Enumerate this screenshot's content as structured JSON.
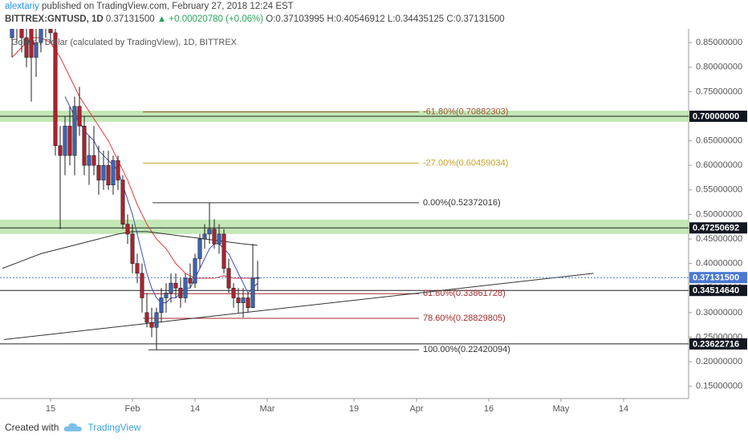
{
  "header": {
    "author": "alextariy",
    "published": "published on TradingView.com, February 27, 2018 12:24 EST",
    "symbol": "BITTREX:GNTUSD, 1D",
    "last": "0.37131500",
    "change": "▲ +0.00020780 (+0.06%)",
    "open": "O:0.37103995",
    "high": "H:0.40546912",
    "low": "L:0.34435125",
    "close": "C:0.37131500"
  },
  "chart_data": {
    "type": "candlestick",
    "title": "Golem / Dollar (calculated by TradingView), 1D, BITTREX",
    "xlim": [
      -10.5,
      132.5
    ],
    "xticks": [
      {
        "value": 0,
        "label": "15"
      },
      {
        "value": 17,
        "label": "Feb"
      },
      {
        "value": 30,
        "label": "14"
      },
      {
        "value": 45,
        "label": "Mar"
      },
      {
        "value": 63,
        "label": "19"
      },
      {
        "value": 76,
        "label": "Apr"
      },
      {
        "value": 91,
        "label": "16"
      },
      {
        "value": 106,
        "label": "May"
      },
      {
        "value": 119,
        "label": "14"
      }
    ],
    "ylim": [
      0.125,
      0.878
    ],
    "yticks": [
      {
        "value": 0.85,
        "label": "0.85000000"
      },
      {
        "value": 0.8,
        "label": "0.80000000"
      },
      {
        "value": 0.75,
        "label": "0.75000000"
      },
      {
        "value": 0.7,
        "label": "0.70000000"
      },
      {
        "value": 0.65,
        "label": "0.65000000"
      },
      {
        "value": 0.6,
        "label": "0.60000000"
      },
      {
        "value": 0.55,
        "label": "0.55000000"
      },
      {
        "value": 0.5,
        "label": "0.50000000"
      },
      {
        "value": 0.45,
        "label": "0.45000000"
      },
      {
        "value": 0.4,
        "label": "0.40000000"
      },
      {
        "value": 0.35,
        "label": "0.35000000"
      },
      {
        "value": 0.3,
        "label": "0.30000000"
      },
      {
        "value": 0.25,
        "label": "0.25000000"
      },
      {
        "value": 0.2,
        "label": "0.20000000"
      },
      {
        "value": 0.15,
        "label": "0.15000000"
      }
    ],
    "candles": {
      "up_color": "#3d64b8",
      "down_color": "#b0212f",
      "x": [
        -8,
        -7,
        -6,
        -5,
        -4,
        -3,
        -2,
        -1,
        0,
        1,
        2,
        3,
        4,
        5,
        6,
        7,
        8,
        9,
        10,
        11,
        12,
        13,
        14,
        15,
        16,
        17,
        18,
        19,
        20,
        21,
        22,
        23,
        24,
        25,
        26,
        27,
        28,
        29,
        30,
        31,
        32,
        33,
        34,
        35,
        36,
        37,
        38,
        39,
        40,
        41,
        42,
        43
      ],
      "open": [
        0.86,
        0.89,
        0.88,
        0.86,
        0.88,
        0.82,
        0.85,
        0.9,
        0.88,
        0.87,
        0.64,
        0.62,
        0.68,
        0.62,
        0.72,
        0.68,
        0.6,
        0.62,
        0.6,
        0.57,
        0.6,
        0.56,
        0.61,
        0.57,
        0.48,
        0.46,
        0.4,
        0.38,
        0.3,
        0.28,
        0.27,
        0.3,
        0.33,
        0.34,
        0.36,
        0.35,
        0.33,
        0.37,
        0.36,
        0.41,
        0.45,
        0.46,
        0.47,
        0.44,
        0.46,
        0.39,
        0.35,
        0.33,
        0.32,
        0.33,
        0.31,
        0.37103995
      ],
      "high": [
        0.92,
        0.95,
        0.94,
        0.9,
        0.92,
        0.88,
        0.93,
        0.96,
        0.94,
        0.89,
        0.68,
        0.7,
        0.72,
        0.74,
        0.76,
        0.7,
        0.66,
        0.68,
        0.64,
        0.63,
        0.63,
        0.62,
        0.62,
        0.58,
        0.5,
        0.48,
        0.42,
        0.4,
        0.34,
        0.31,
        0.31,
        0.35,
        0.36,
        0.38,
        0.38,
        0.37,
        0.38,
        0.4,
        0.42,
        0.46,
        0.48,
        0.52372016,
        0.49,
        0.48,
        0.47,
        0.41,
        0.36,
        0.35,
        0.35,
        0.34,
        0.44,
        0.40546912
      ],
      "low": [
        0.82,
        0.85,
        0.83,
        0.8,
        0.73,
        0.78,
        0.83,
        0.86,
        0.85,
        0.62,
        0.47,
        0.58,
        0.6,
        0.58,
        0.66,
        0.58,
        0.56,
        0.58,
        0.54,
        0.55,
        0.55,
        0.54,
        0.55,
        0.47,
        0.44,
        0.38,
        0.36,
        0.3,
        0.27,
        0.25,
        0.22420094,
        0.28,
        0.3,
        0.32,
        0.33,
        0.31,
        0.32,
        0.35,
        0.35,
        0.39,
        0.43,
        0.44,
        0.43,
        0.42,
        0.38,
        0.34,
        0.31,
        0.3,
        0.29,
        0.3,
        0.31,
        0.34435125
      ],
      "close": [
        0.89,
        0.88,
        0.86,
        0.82,
        0.82,
        0.85,
        0.9,
        0.88,
        0.87,
        0.64,
        0.62,
        0.68,
        0.62,
        0.72,
        0.68,
        0.6,
        0.62,
        0.6,
        0.57,
        0.6,
        0.56,
        0.61,
        0.57,
        0.48,
        0.46,
        0.4,
        0.38,
        0.33,
        0.28,
        0.27,
        0.3,
        0.33,
        0.34,
        0.36,
        0.35,
        0.33,
        0.37,
        0.36,
        0.41,
        0.45,
        0.46,
        0.47,
        0.44,
        0.46,
        0.39,
        0.35,
        0.33,
        0.32,
        0.33,
        0.31,
        0.37,
        0.371315
      ]
    },
    "lines": [
      {
        "color": "#3f51b5",
        "x": [
          3,
          4,
          5,
          6,
          7,
          8,
          9,
          10,
          11,
          12,
          13,
          14,
          15,
          16,
          17,
          18,
          19,
          20,
          21,
          22,
          23,
          24,
          25,
          26,
          27,
          28,
          29,
          30,
          31,
          32,
          33,
          34,
          35,
          36,
          37,
          38,
          39,
          40,
          41,
          42,
          43
        ],
        "values": [
          0.74,
          0.72,
          0.7,
          0.69,
          0.67,
          0.66,
          0.65,
          0.63,
          0.62,
          0.61,
          0.6,
          0.59,
          0.56,
          0.53,
          0.5,
          0.46,
          0.42,
          0.38,
          0.35,
          0.33,
          0.32,
          0.32,
          0.33,
          0.33,
          0.34,
          0.35,
          0.35,
          0.37,
          0.39,
          0.41,
          0.43,
          0.44,
          0.44,
          0.43,
          0.42,
          0.4,
          0.38,
          0.36,
          0.34,
          0.35,
          0.36
        ]
      },
      {
        "color": "#e53935",
        "x": [
          -8,
          -6,
          -4,
          -2,
          0,
          2,
          4,
          6,
          8,
          10,
          12,
          14,
          16,
          18,
          20,
          22,
          24,
          26,
          28,
          30,
          32,
          34,
          36,
          38,
          40,
          42,
          43
        ],
        "values": [
          0.82,
          0.84,
          0.86,
          0.86,
          0.85,
          0.82,
          0.78,
          0.74,
          0.71,
          0.68,
          0.65,
          0.61,
          0.57,
          0.52,
          0.48,
          0.45,
          0.43,
          0.4,
          0.38,
          0.37,
          0.37,
          0.37,
          0.375,
          0.37,
          0.37,
          0.37,
          0.37
        ]
      },
      {
        "color": "#333333",
        "x": [
          -10,
          -6,
          -2,
          2,
          6,
          10,
          14,
          17,
          20,
          24,
          28,
          32,
          36,
          40,
          43
        ],
        "values": [
          0.39,
          0.405,
          0.42,
          0.43,
          0.44,
          0.45,
          0.46,
          0.465,
          0.465,
          0.46,
          0.455,
          0.45,
          0.445,
          0.44,
          0.437
        ]
      }
    ],
    "trendline": {
      "color": "#333333",
      "x": [
        -9.7,
        112.8
      ],
      "values": [
        0.245,
        0.38
      ]
    },
    "zones": [
      {
        "range": [
          0.6885,
          0.7113
        ],
        "color": "#b9e4a9"
      },
      {
        "range": [
          0.4601,
          0.4894
        ],
        "color": "#b9e4a9"
      }
    ],
    "levels": [
      {
        "value": 0.7,
        "label": "0.70000000"
      },
      {
        "value": 0.47250692,
        "label": "0.47250692"
      },
      {
        "value": 0.3451464,
        "label": "0.34514640"
      },
      {
        "value": 0.23622716,
        "label": "0.23622716"
      }
    ],
    "fib": [
      {
        "label": "-61.80%(0.70882303)",
        "value": 0.70882303,
        "x": [
          19.2,
          76.5
        ],
        "color": "#a0522d"
      },
      {
        "label": "-27.00%(0.60459034)",
        "value": 0.60459034,
        "x": [
          19.2,
          76.5
        ],
        "color": "#c9a227"
      },
      {
        "label": "0.00%(0.52372016)",
        "value": 0.52372016,
        "x": [
          21.2,
          76.5
        ],
        "color": "#333333"
      },
      {
        "label": "61.80%(0.33861728)",
        "value": 0.33861728,
        "x": [
          19.2,
          76.5
        ],
        "color": "#a52a2a"
      },
      {
        "label": "78.60%(0.28829805)",
        "value": 0.28829805,
        "x": [
          19.2,
          76.5
        ],
        "color": "#a52a2a"
      },
      {
        "label": "100.00%(0.22420094)",
        "value": 0.22420094,
        "x": [
          20.3,
          76.5
        ],
        "color": "#333333"
      }
    ],
    "last_price": {
      "value": 0.371315,
      "label": "0.37131500",
      "color": "#4a78d4"
    }
  },
  "footer": {
    "created": "Created with",
    "brand": "TradingView"
  }
}
